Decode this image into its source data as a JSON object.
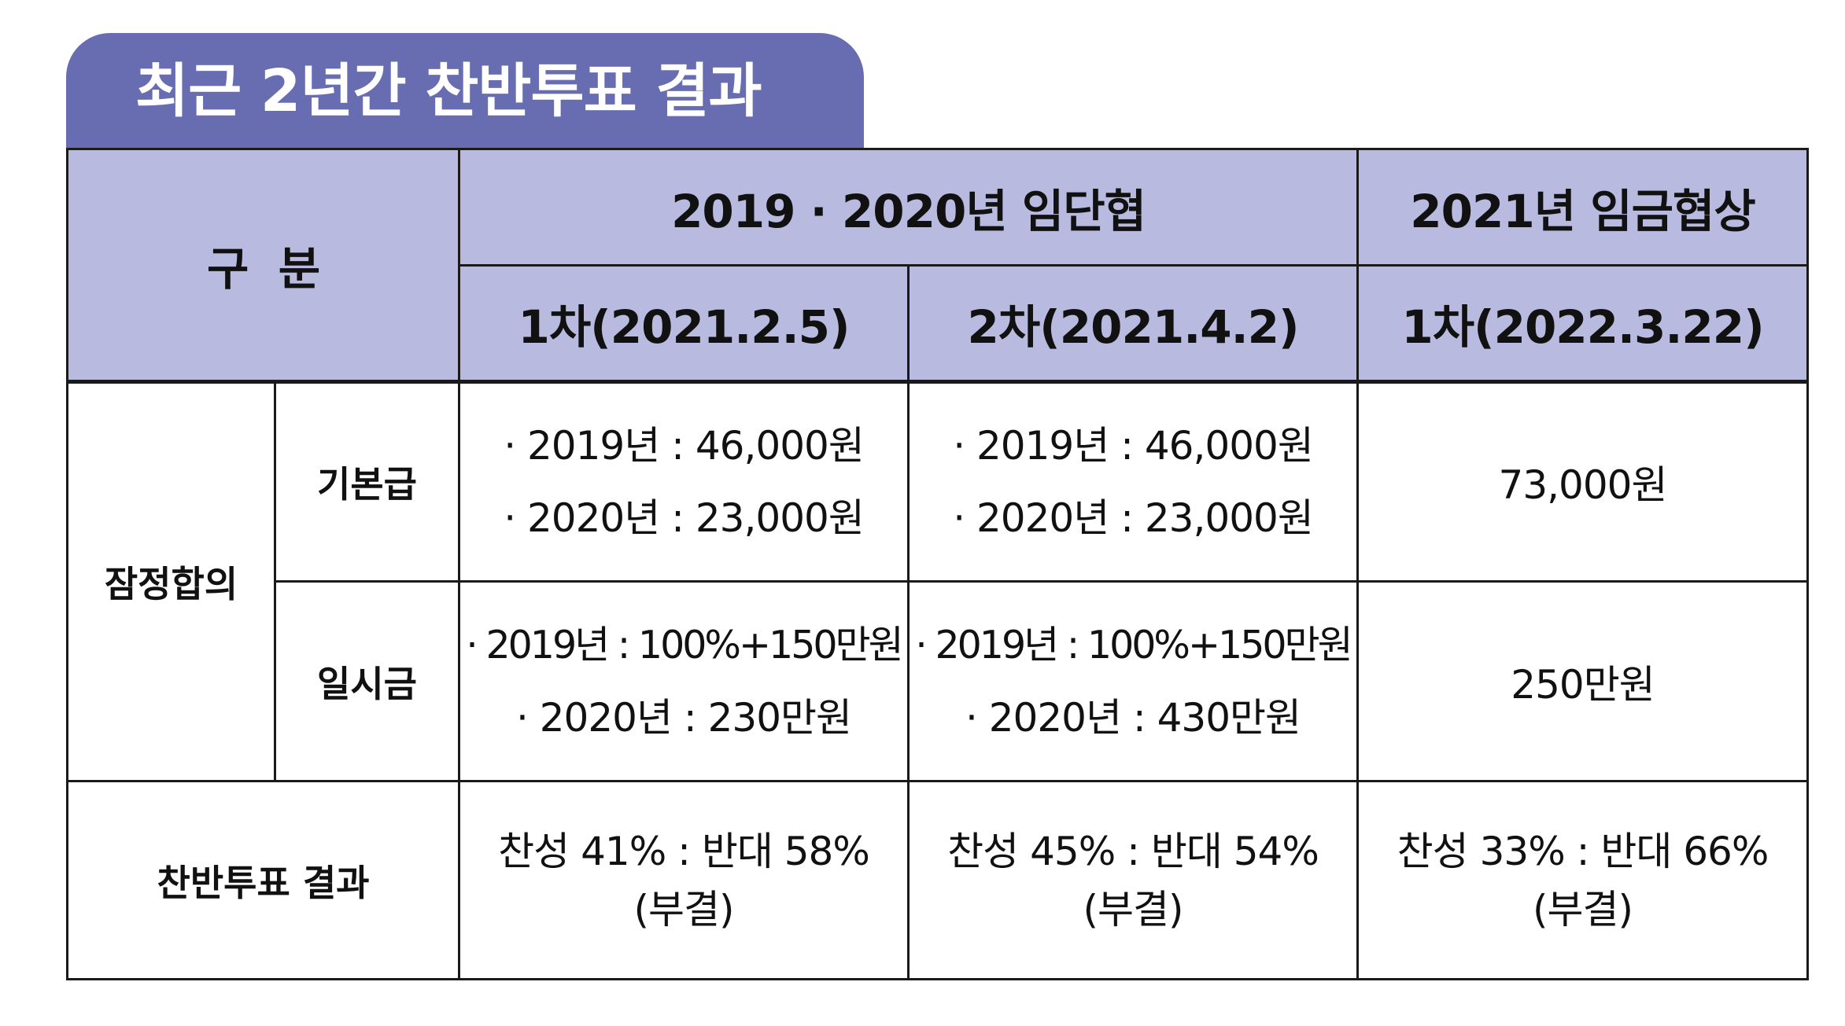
{
  "title": "최근 2년간 찬반투표 결과",
  "table": {
    "header": {
      "category": "구  분",
      "group1": "2019 · 2020년 임단협",
      "group2": "2021년 임금협상",
      "rounds": [
        "1차(2021.2.5)",
        "2차(2021.4.2)",
        "1차(2022.3.22)"
      ]
    },
    "rows": {
      "tentative_label": "잠정합의",
      "base_pay": {
        "label": "기본급",
        "col1": [
          "· 2019년 : 46,000원",
          "· 2020년 : 23,000원"
        ],
        "col2": [
          "· 2019년 : 46,000원",
          "· 2020년 : 23,000원"
        ],
        "col3": "73,000원"
      },
      "lump_sum": {
        "label": "일시금",
        "col1": [
          "· 2019년 : 100%+150만원",
          "· 2020년 : 230만원"
        ],
        "col2": [
          "· 2019년 : 100%+150만원",
          "· 2020년 : 430만원"
        ],
        "col3": "250만원"
      },
      "vote": {
        "label": "찬반투표 결과",
        "col1": [
          "찬성 41% : 반대 58%",
          "(부결)"
        ],
        "col2": [
          "찬성 45% : 반대 54%",
          "(부결)"
        ],
        "col3": [
          "찬성 33% : 반대 66%",
          "(부결)"
        ]
      }
    }
  },
  "colors": {
    "title_bg": "#686db2",
    "header_bg": "#b8bbdf",
    "border": "#1a1a1a"
  }
}
